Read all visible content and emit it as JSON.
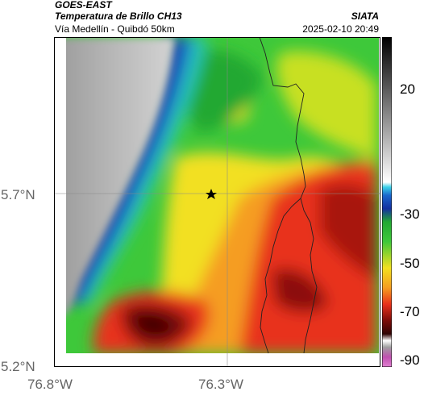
{
  "header": {
    "source": "GOES-EAST",
    "product": "Temperatura de Brillo CH13",
    "region": "Vía Medellín - Quibdó 50km",
    "organization": "SIATA",
    "timestamp": "2025-02-10 20:49"
  },
  "axes": {
    "lat_ticks": [
      "5.7°N",
      "5.2°N"
    ],
    "lon_ticks": [
      "76.8°W",
      "76.3°W"
    ]
  },
  "colorbar": {
    "ticks": [
      "20",
      "-30",
      "-50",
      "-70",
      "-90"
    ]
  },
  "map": {
    "marker_icon": "star-icon"
  }
}
